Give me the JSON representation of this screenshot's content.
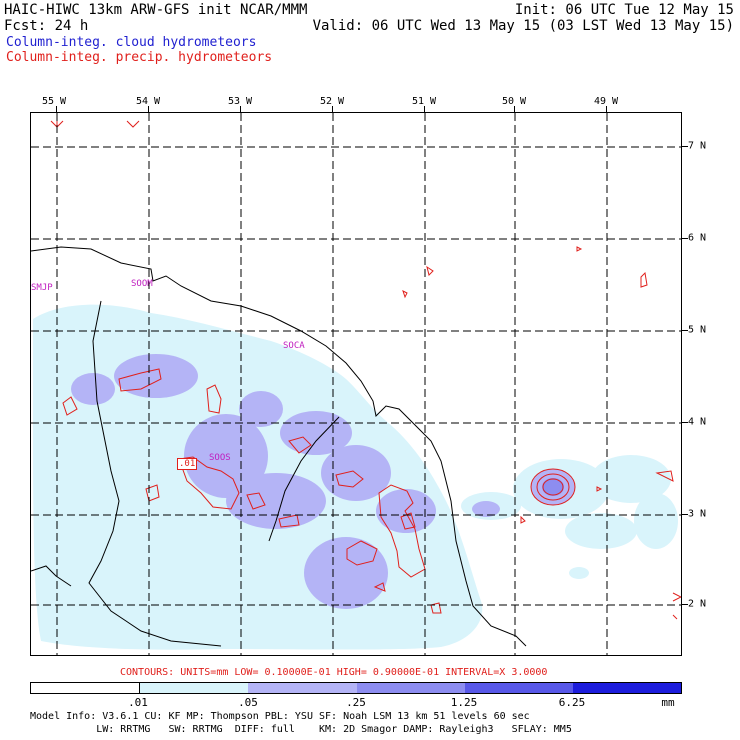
{
  "header": {
    "line1_left": "HAIC-HIWC 13km ARW-GFS init   NCAR/MMM",
    "line1_right": "Init: 06 UTC Tue 12 May 15",
    "line2_left": "Fcst:   24 h",
    "line2_right": "Valid: 06 UTC Wed 13 May 15 (03 LST Wed 13 May 15)",
    "line3": "Column-integ. cloud hydrometeors",
    "line4": "Column-integ. precip. hydrometeors"
  },
  "lon_labels": [
    "55 W",
    "54 W",
    "53 W",
    "52 W",
    "51 W",
    "50 W",
    "49 W"
  ],
  "lat_labels": [
    "7 N",
    "6 N",
    "5 N",
    "4 N",
    "3 N",
    "2 N"
  ],
  "stations": [
    "SMJP",
    "SOOM",
    "SOCA",
    "SOOS"
  ],
  "contour_label": ".01",
  "contours_line": "CONTOURS:  UNITS=mm  LOW= 0.10000E-01  HIGH= 0.90000E-01  INTERVAL=X  3.0000",
  "legend": {
    "labels": [
      ".01",
      ".05",
      ".25",
      "1.25",
      "6.25",
      "mm"
    ],
    "colors": [
      "#ffffff",
      "#d9f4fb",
      "#b4b4f6",
      "#8d8df0",
      "#5858e8",
      "#1c1cdc"
    ]
  },
  "footer": {
    "line1": "Model Info: V3.6.1    CU: KF      MP: Thompson    PBL: YSU      SF: Noah LSM     13 km   51 levels   60 sec",
    "line2": "           LW: RRTMG   SW: RRTMG  DIFF: full    KM: 2D Smagor DAMP: Rayleigh3   SFLAY: MM5"
  },
  "colors": {
    "cloud_light": "#d9f4fb",
    "cloud_mid": "#b4b4f6",
    "cloud_dark": "#8d8df0",
    "precip_contour": "#e0201c",
    "station_label": "#c020c0"
  }
}
